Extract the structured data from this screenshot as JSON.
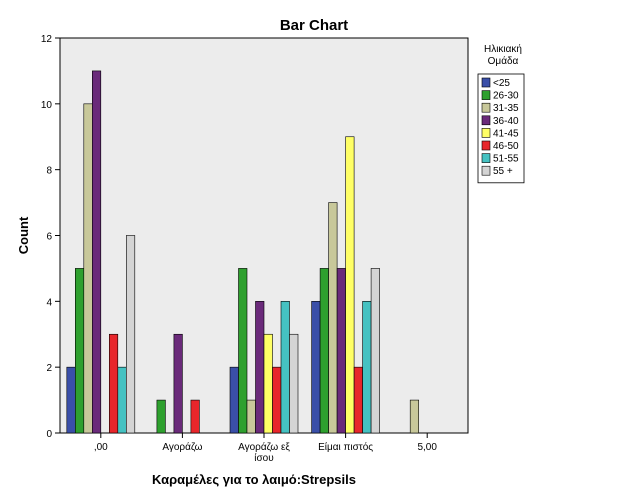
{
  "chart_data": {
    "type": "bar",
    "title": "Bar Chart",
    "xlabel": "Καραμέλες για το λαιμό:Strepsils",
    "ylabel": "Count",
    "ylim": [
      0,
      12
    ],
    "yticks": [
      0,
      2,
      4,
      6,
      8,
      10,
      12
    ],
    "categories": [
      ",00",
      "Αγοράζω",
      "Αγοράζω εξ ίσου",
      "Είμαι πιστός",
      "5,00"
    ],
    "legend_title": "Ηλικιακή Ομάδα",
    "legend_position": "right",
    "grid": false,
    "background": "#ececec",
    "series": [
      {
        "name": "<25",
        "color": "#3a4fa8",
        "values": [
          2,
          null,
          2,
          4,
          null
        ]
      },
      {
        "name": "26-30",
        "color": "#2ea02e",
        "values": [
          5,
          1,
          5,
          5,
          null
        ]
      },
      {
        "name": "31-35",
        "color": "#c8c89a",
        "values": [
          10,
          null,
          1,
          7,
          1
        ]
      },
      {
        "name": "36-40",
        "color": "#6a2a7a",
        "values": [
          11,
          3,
          4,
          5,
          null
        ]
      },
      {
        "name": "41-45",
        "color": "#ffff66",
        "values": [
          null,
          null,
          3,
          9,
          null
        ]
      },
      {
        "name": "46-50",
        "color": "#e8262b",
        "values": [
          3,
          1,
          2,
          2,
          null
        ]
      },
      {
        "name": "51-55",
        "color": "#45c2c2",
        "values": [
          2,
          null,
          4,
          4,
          null
        ]
      },
      {
        "name": "55 +",
        "color": "#d4d4d4",
        "values": [
          6,
          null,
          3,
          5,
          null
        ]
      }
    ]
  }
}
